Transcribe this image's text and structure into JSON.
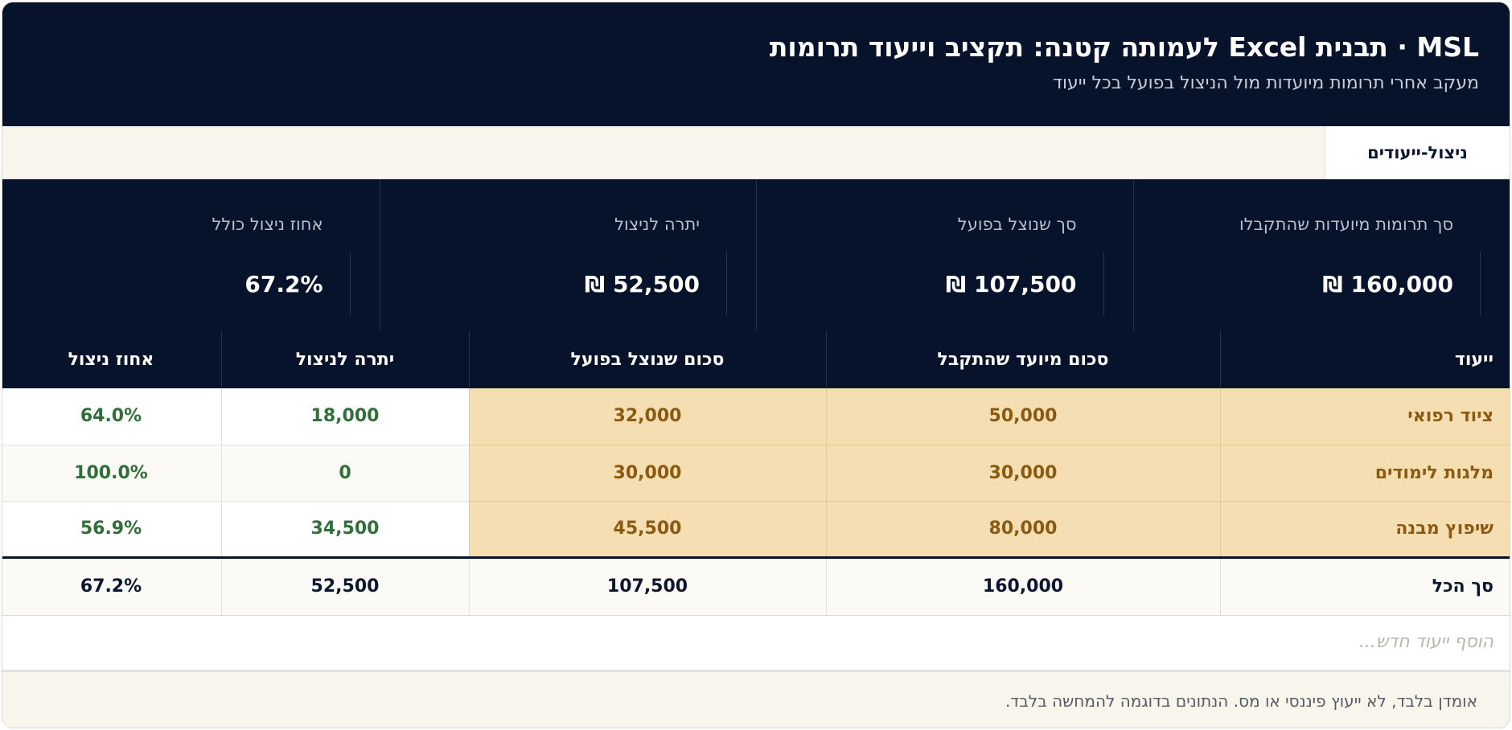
{
  "header": {
    "title": "MSL · תבנית Excel לעמותה קטנה: תקציב וייעוד תרומות",
    "subtitle": "מעקב אחרי תרומות מיועדות מול הניצול בפועל בכל ייעוד"
  },
  "tabs": [
    {
      "label": "ניצול-ייעודים"
    }
  ],
  "kpis": [
    {
      "label": "סך תרומות מיועדות שהתקבלו",
      "value": "160,000 ₪"
    },
    {
      "label": "סך שנוצל בפועל",
      "value": "107,500 ₪"
    },
    {
      "label": "יתרה לניצול",
      "value": "52,500 ₪"
    },
    {
      "label": "אחוז ניצול כולל",
      "value": "67.2%"
    }
  ],
  "table": {
    "columns": [
      "ייעוד",
      "סכום מיועד שהתקבל",
      "סכום שנוצל בפועל",
      "יתרה לניצול",
      "אחוז ניצול"
    ],
    "rows": [
      [
        "ציוד רפואי",
        "50,000",
        "32,000",
        "18,000",
        "64.0%"
      ],
      [
        "מלגות לימודים",
        "30,000",
        "30,000",
        "0",
        "100.0%"
      ],
      [
        "שיפוץ מבנה",
        "80,000",
        "45,500",
        "34,500",
        "56.9%"
      ]
    ],
    "total": [
      "סך הכל",
      "160,000",
      "107,500",
      "52,500",
      "67.2%"
    ]
  },
  "add_row": {
    "placeholder": "הוסף ייעוד חדש..."
  },
  "footer": {
    "text": "אומדן בלבד, לא ייעוץ פיננסי או מס. הנתונים בדוגמה להמחשה בלבד."
  },
  "colors": {
    "header_bg": "#07132b",
    "highlight_bg": "#f5dfb2",
    "highlight_text": "#8a5a12",
    "positive_text": "#2e7038",
    "tabbar_bg": "#f8f5ec"
  }
}
